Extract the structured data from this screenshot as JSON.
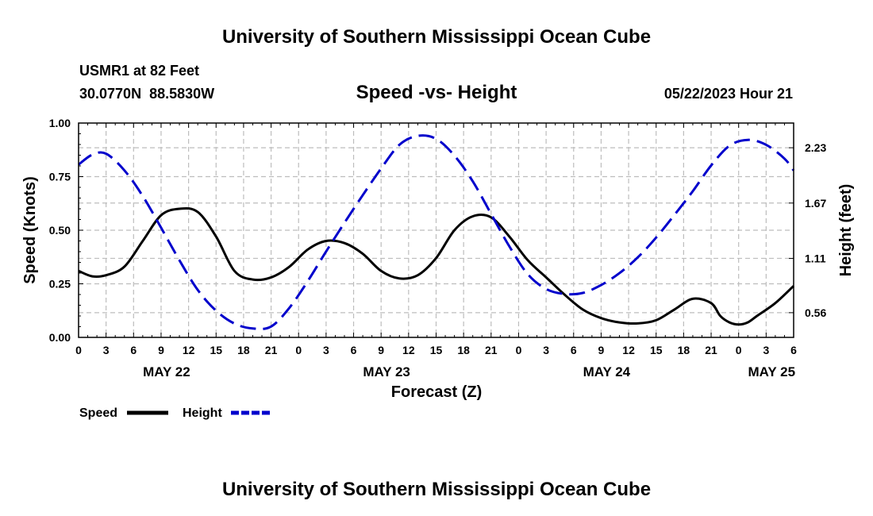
{
  "page": {
    "top_title": "University of Southern Mississippi Ocean Cube",
    "bottom_title": "University of Southern Mississippi Ocean Cube",
    "station": "USMR1 at 82 Feet",
    "coordinates": "30.0770N  88.5830W",
    "timestamp": "05/22/2023 Hour 21"
  },
  "colors": {
    "speed": "#000000",
    "height": "#0000cc",
    "grid": "#bdbdbd",
    "axis": "#000000"
  },
  "chart_data": {
    "type": "line",
    "title": "Speed -vs- Height",
    "xlabel": "Forecast (Z)",
    "ylabel": "Speed (Knots)",
    "y2label": "Height (feet)",
    "x_unit": "hours from 0Z May 22",
    "xlim": [
      0,
      78
    ],
    "ylim": [
      0,
      1
    ],
    "y2lim": [
      0.31,
      2.48
    ],
    "x_ticks": [
      0,
      3,
      6,
      9,
      12,
      15,
      18,
      21,
      24,
      27,
      30,
      33,
      36,
      39,
      42,
      45,
      48,
      51,
      54,
      57,
      60,
      63,
      66,
      69,
      72,
      75,
      78
    ],
    "x_tick_labels": [
      "0",
      "3",
      "6",
      "9",
      "12",
      "15",
      "18",
      "21",
      "0",
      "3",
      "6",
      "9",
      "12",
      "15",
      "18",
      "21",
      "0",
      "3",
      "6",
      "9",
      "12",
      "15",
      "18",
      "21",
      "0",
      "3",
      "6"
    ],
    "date_labels": [
      {
        "x": 9.6,
        "label": "MAY 22"
      },
      {
        "x": 33.6,
        "label": "MAY 23"
      },
      {
        "x": 57.6,
        "label": "MAY 24"
      },
      {
        "x": 75.6,
        "label": "MAY 25"
      }
    ],
    "y_ticks": [
      0,
      0.25,
      0.5,
      0.75,
      1.0
    ],
    "y_tick_labels": [
      "0.00",
      "0.25",
      "0.50",
      "0.75",
      "1.00"
    ],
    "y2_ticks": [
      0.56,
      1.11,
      1.67,
      2.23
    ],
    "y2_tick_labels": [
      "0.56",
      "1.11",
      "1.67",
      "2.23"
    ],
    "grid": true,
    "legend_position": "bottom-left",
    "series": [
      {
        "name": "Speed",
        "axis": "left",
        "style": "solid",
        "x": [
          0,
          1.5,
          3,
          5,
          7,
          9,
          11,
          13,
          15,
          17,
          19,
          21,
          23,
          25,
          27,
          29,
          31,
          33,
          35,
          37,
          39,
          41,
          43,
          45,
          47,
          49,
          51,
          53,
          55,
          57,
          59,
          61,
          63,
          65,
          67,
          69,
          70,
          71,
          72,
          73,
          74,
          76,
          78
        ],
        "values": [
          0.31,
          0.285,
          0.29,
          0.33,
          0.45,
          0.57,
          0.6,
          0.585,
          0.47,
          0.31,
          0.27,
          0.28,
          0.33,
          0.41,
          0.45,
          0.44,
          0.39,
          0.31,
          0.275,
          0.29,
          0.37,
          0.5,
          0.565,
          0.56,
          0.47,
          0.36,
          0.28,
          0.2,
          0.13,
          0.09,
          0.07,
          0.065,
          0.08,
          0.13,
          0.18,
          0.16,
          0.1,
          0.07,
          0.06,
          0.07,
          0.1,
          0.16,
          0.24
        ]
      },
      {
        "name": "Height",
        "axis": "right",
        "style": "dashed",
        "x": [
          0,
          1.5,
          3,
          5,
          7,
          9,
          11,
          13,
          15,
          17,
          19,
          21,
          23,
          25,
          27,
          29,
          31,
          33,
          35,
          37,
          39,
          41,
          43,
          45,
          47,
          49,
          51,
          53,
          55,
          57,
          59,
          61,
          63,
          65,
          67,
          69,
          71,
          73,
          75,
          77,
          78
        ],
        "values": [
          2.06,
          2.16,
          2.17,
          2.0,
          1.74,
          1.42,
          1.09,
          0.79,
          0.58,
          0.45,
          0.4,
          0.42,
          0.61,
          0.88,
          1.18,
          1.47,
          1.75,
          2.02,
          2.26,
          2.35,
          2.32,
          2.15,
          1.89,
          1.56,
          1.23,
          0.95,
          0.8,
          0.75,
          0.76,
          0.84,
          0.96,
          1.12,
          1.32,
          1.55,
          1.79,
          2.05,
          2.25,
          2.31,
          2.26,
          2.12,
          2.0
        ]
      }
    ]
  }
}
